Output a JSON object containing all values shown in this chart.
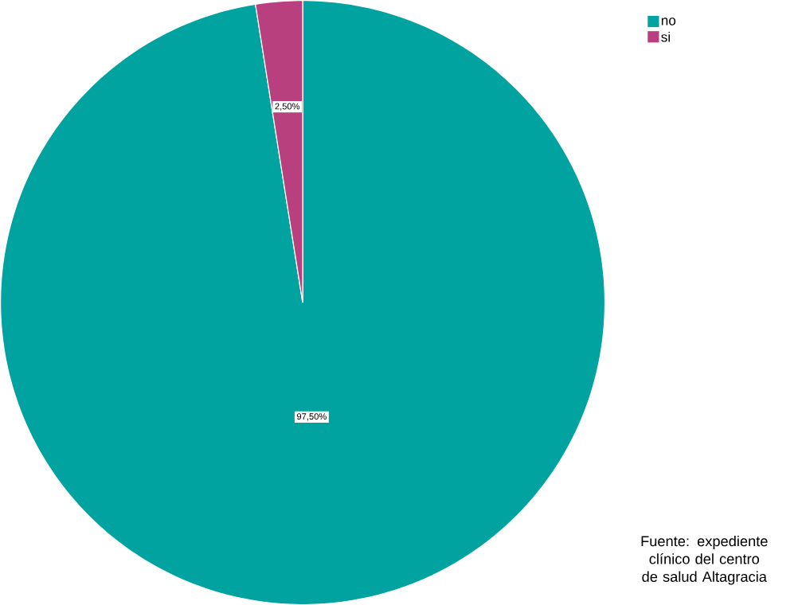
{
  "chart_data": {
    "type": "pie",
    "categories": [
      "no",
      "si"
    ],
    "values": [
      97.5,
      2.5
    ],
    "colors": [
      "#00a3a0",
      "#b8407f"
    ],
    "value_labels": [
      "97,50%",
      "2,50%"
    ],
    "legend": "top right",
    "annotations": [
      "Fuente: expediente clínico del centro de salud Altagracia"
    ]
  }
}
